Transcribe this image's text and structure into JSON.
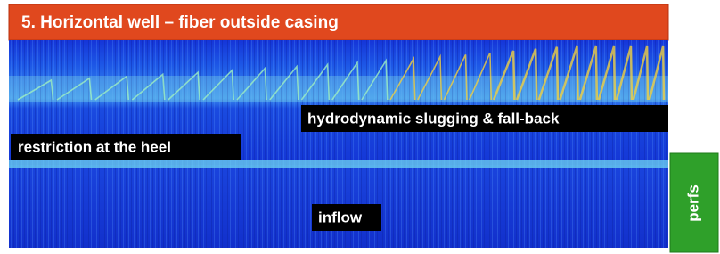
{
  "title": "5. Horizontal well – fiber outside casing",
  "annotations": [
    "hydrodynamic slugging & fall-back",
    "restriction at the heel",
    "inflow"
  ],
  "side_label": "perfs"
}
